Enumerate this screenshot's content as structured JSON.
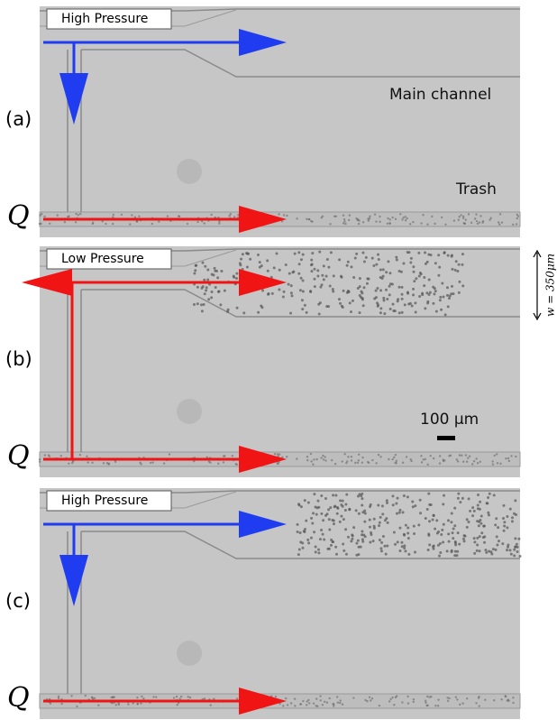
{
  "panels": [
    {
      "label": "(a)",
      "pressure": "High Pressure",
      "flow": "Q"
    },
    {
      "label": "(b)",
      "pressure": "Low Pressure",
      "flow": "Q"
    },
    {
      "label": "(c)",
      "pressure": "High Pressure",
      "flow": "Q"
    }
  ],
  "annotations": {
    "main_channel": "Main channel",
    "trash": "Trash",
    "width": "w = 350μm",
    "scale_bar": "100 μm"
  }
}
